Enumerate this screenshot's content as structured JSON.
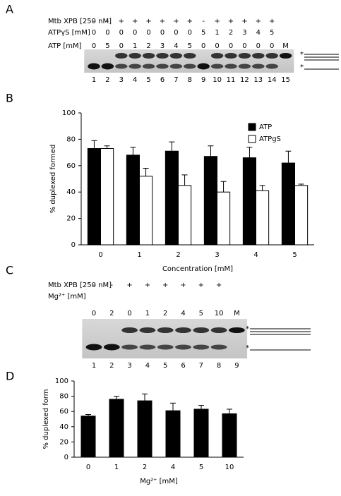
{
  "panels": [
    "A",
    "B",
    "C",
    "D"
  ],
  "gel_a": {
    "rows": [
      {
        "label": "Mtb XPB [250 nM]",
        "cells": [
          "-",
          "-",
          "+",
          "+",
          "+",
          "+",
          "+",
          "+",
          "-",
          "+",
          "+",
          "+",
          "+",
          "+"
        ]
      },
      {
        "label": "ATPγS [mM]",
        "cells": [
          "0",
          "0",
          "0",
          "0",
          "0",
          "0",
          "0",
          "0",
          "5",
          "1",
          "2",
          "3",
          "4",
          "5"
        ]
      },
      {
        "label": "ATP [mM]",
        "cells": [
          "0",
          "5",
          "0",
          "1",
          "2",
          "3",
          "4",
          "5",
          "0",
          "0",
          "0",
          "0",
          "0",
          "0",
          "M"
        ]
      }
    ],
    "lanes": [
      "1",
      "2",
      "3",
      "4",
      "5",
      "6",
      "7",
      "8",
      "9",
      "10",
      "11",
      "12",
      "13",
      "14",
      "15"
    ],
    "marker": "*"
  },
  "gel_c": {
    "rows": [
      {
        "label": "Mtb XPB [250 nM]",
        "cells": [
          "-",
          "-",
          "+",
          "+",
          "+",
          "+",
          "+",
          "+"
        ]
      },
      {
        "label": "Mg²⁺ [mM]",
        "cells": [
          "0",
          "2",
          "0",
          "1",
          "2",
          "4",
          "5",
          "10",
          "M"
        ]
      }
    ],
    "lanes": [
      "1",
      "2",
      "3",
      "4",
      "5",
      "6",
      "7",
      "8",
      "9"
    ],
    "marker": "*"
  },
  "chart_data": [
    {
      "type": "bar",
      "x_label": "Concentration [mM]",
      "y_label": "% duplexed formed",
      "categories": [
        "0",
        "1",
        "2",
        "3",
        "4",
        "5"
      ],
      "series": [
        {
          "name": "ATP",
          "color": "#000000",
          "values": [
            73,
            68,
            71,
            67,
            66,
            62
          ],
          "errors": [
            6,
            6,
            7,
            8,
            8,
            9
          ]
        },
        {
          "name": "ATPgS",
          "color": "#ffffff",
          "values": [
            73,
            52,
            45,
            40,
            41,
            45
          ],
          "errors": [
            2,
            6,
            8,
            8,
            4,
            1
          ]
        }
      ],
      "ylim": [
        0,
        100
      ],
      "yticks": [
        0,
        20,
        40,
        60,
        80,
        100
      ],
      "legend": "upper right"
    },
    {
      "type": "bar",
      "x_label": "Mg²⁺ [mM]",
      "y_label": "% duplexed form",
      "categories": [
        "0",
        "1",
        "2",
        "4",
        "5",
        "10"
      ],
      "series": [
        {
          "color": "#000000",
          "values": [
            54,
            76,
            74,
            61,
            63,
            57
          ],
          "errors": [
            2,
            4,
            9,
            10,
            5,
            6
          ]
        }
      ],
      "ylim": [
        0,
        100
      ],
      "yticks": [
        0,
        20,
        40,
        60,
        80,
        100
      ]
    }
  ]
}
